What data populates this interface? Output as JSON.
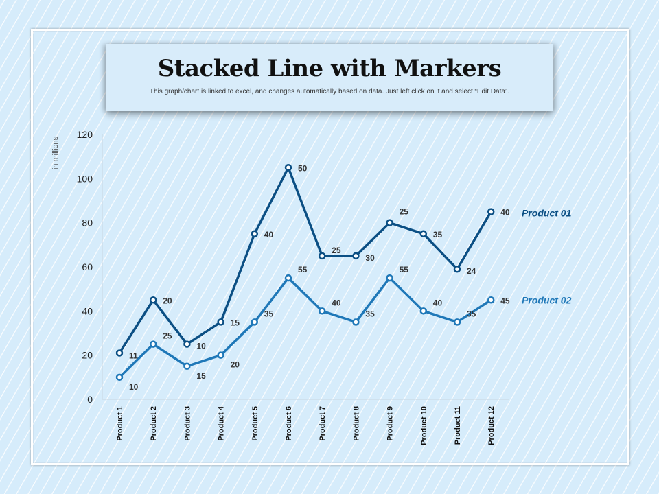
{
  "header": {
    "title": "Stacked Line with Markers",
    "subtitle": "This graph/chart is linked to excel, and changes automatically based on data. Just left click on it and select “Edit Data”."
  },
  "colors": {
    "series1": "#0b4f84",
    "series2": "#1f78b8",
    "axis": "#c8d6e2"
  },
  "chart_data": {
    "type": "line",
    "stacked": true,
    "markers": true,
    "title": "Stacked Line with Markers",
    "ylabel": "in millions",
    "ylim": [
      0,
      120
    ],
    "yticks": [
      "0",
      "20",
      "40",
      "60",
      "80",
      "100",
      "120"
    ],
    "grid": false,
    "categories": [
      "Product 1",
      "Product 2",
      "Product 3",
      "Product 4",
      "Product 5",
      "Product 6",
      "Product 7",
      "Product 8",
      "Product 9",
      "Product 10",
      "Product 11",
      "Product 12"
    ],
    "series": [
      {
        "name": "Product 02",
        "values": [
          10,
          25,
          15,
          20,
          35,
          55,
          40,
          35,
          55,
          40,
          35,
          45
        ]
      },
      {
        "name": "Product 01",
        "values": [
          11,
          20,
          10,
          15,
          40,
          50,
          25,
          30,
          25,
          35,
          24,
          40
        ]
      }
    ],
    "legend_placement": "right, next to line ends"
  }
}
